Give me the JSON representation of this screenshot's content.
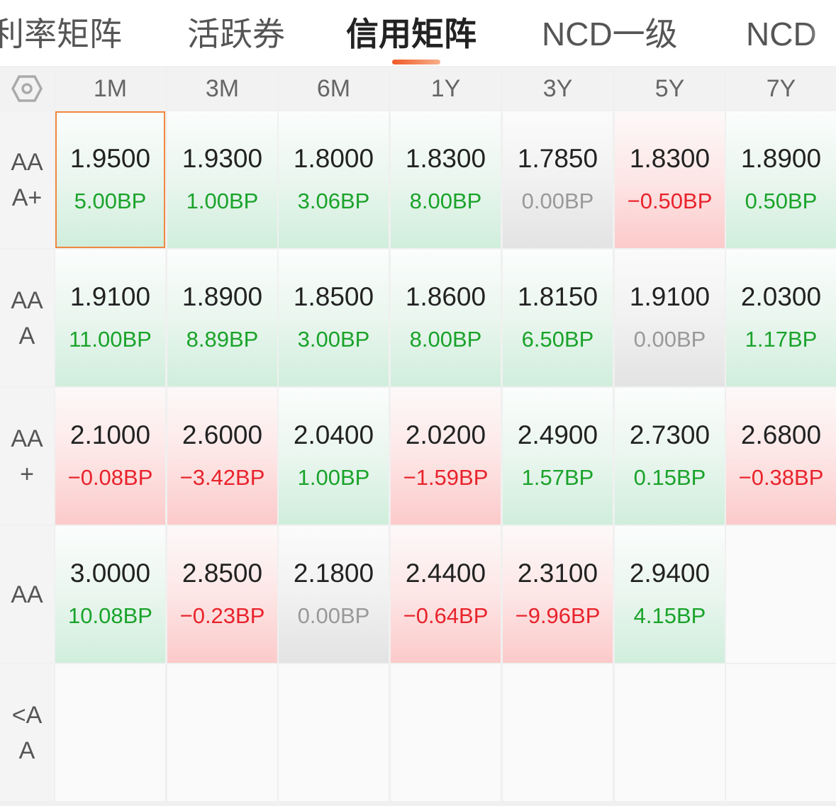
{
  "tabs": [
    {
      "label": "利率矩阵",
      "active": false
    },
    {
      "label": "活跃券",
      "active": false
    },
    {
      "label": "信用矩阵",
      "active": true
    },
    {
      "label": "NCD一级",
      "active": false
    },
    {
      "label": "NCD",
      "active": false
    }
  ],
  "accent_color": "#f05a28",
  "settings_icon": "hexagon-settings-icon",
  "columns": [
    "1M",
    "3M",
    "6M",
    "1Y",
    "3Y",
    "5Y",
    "7Y"
  ],
  "rows": [
    {
      "label": "AA\nA+",
      "cells": [
        {
          "rate": "1.9500",
          "change": "5.00BP",
          "trend": "up",
          "selected": true
        },
        {
          "rate": "1.9300",
          "change": "1.00BP",
          "trend": "up"
        },
        {
          "rate": "1.8000",
          "change": "3.06BP",
          "trend": "up"
        },
        {
          "rate": "1.8300",
          "change": "8.00BP",
          "trend": "up"
        },
        {
          "rate": "1.7850",
          "change": "0.00BP",
          "trend": "flat"
        },
        {
          "rate": "1.8300",
          "change": "−0.50BP",
          "trend": "down"
        },
        {
          "rate": "1.8900",
          "change": "0.50BP",
          "trend": "up"
        }
      ]
    },
    {
      "label": "AA\nA",
      "cells": [
        {
          "rate": "1.9100",
          "change": "11.00BP",
          "trend": "up"
        },
        {
          "rate": "1.8900",
          "change": "8.89BP",
          "trend": "up"
        },
        {
          "rate": "1.8500",
          "change": "3.00BP",
          "trend": "up"
        },
        {
          "rate": "1.8600",
          "change": "8.00BP",
          "trend": "up"
        },
        {
          "rate": "1.8150",
          "change": "6.50BP",
          "trend": "up"
        },
        {
          "rate": "1.9100",
          "change": "0.00BP",
          "trend": "flat"
        },
        {
          "rate": "2.0300",
          "change": "1.17BP",
          "trend": "up"
        }
      ]
    },
    {
      "label": "AA\n+",
      "cells": [
        {
          "rate": "2.1000",
          "change": "−0.08BP",
          "trend": "down"
        },
        {
          "rate": "2.6000",
          "change": "−3.42BP",
          "trend": "down"
        },
        {
          "rate": "2.0400",
          "change": "1.00BP",
          "trend": "up"
        },
        {
          "rate": "2.0200",
          "change": "−1.59BP",
          "trend": "down"
        },
        {
          "rate": "2.4900",
          "change": "1.57BP",
          "trend": "up"
        },
        {
          "rate": "2.7300",
          "change": "0.15BP",
          "trend": "up"
        },
        {
          "rate": "2.6800",
          "change": "−0.38BP",
          "trend": "down"
        }
      ]
    },
    {
      "label": "AA",
      "cells": [
        {
          "rate": "3.0000",
          "change": "10.08BP",
          "trend": "up"
        },
        {
          "rate": "2.8500",
          "change": "−0.23BP",
          "trend": "down"
        },
        {
          "rate": "2.1800",
          "change": "0.00BP",
          "trend": "flat"
        },
        {
          "rate": "2.4400",
          "change": "−0.64BP",
          "trend": "down"
        },
        {
          "rate": "2.3100",
          "change": "−9.96BP",
          "trend": "down"
        },
        {
          "rate": "2.9400",
          "change": "4.15BP",
          "trend": "up"
        },
        null
      ]
    },
    {
      "label": "<A\nA",
      "cells": [
        null,
        null,
        null,
        null,
        null,
        null,
        null
      ]
    }
  ]
}
